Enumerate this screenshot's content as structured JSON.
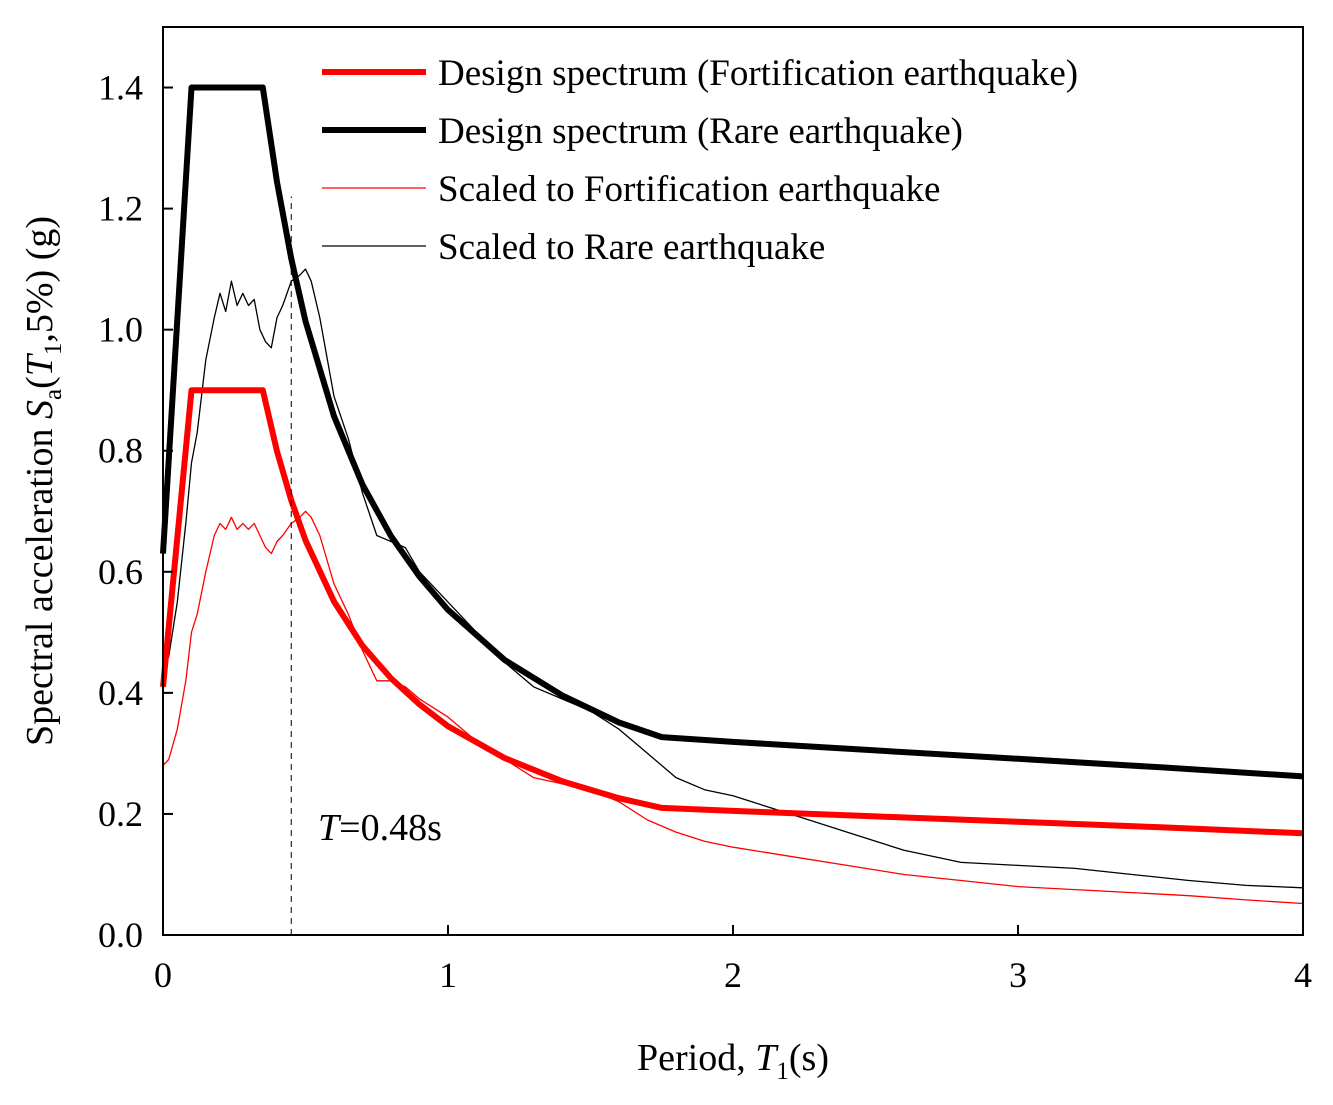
{
  "chart_data": {
    "type": "line",
    "title": "",
    "xlabel": {
      "prefix": "Period, ",
      "var": "T",
      "sub": "1",
      "suffix": "(s)"
    },
    "ylabel": {
      "prefix": "Spectral acceleration ",
      "var": "S",
      "sub": "a",
      "open": "(",
      "var2": "T",
      "sub2": "1",
      "suffix": ",5%) (g)"
    },
    "xlim": [
      0,
      4
    ],
    "ylim": [
      0,
      1.5
    ],
    "x_ticks": [
      0,
      1,
      2,
      3,
      4
    ],
    "x_tick_labels": [
      "0",
      "1",
      "2",
      "3",
      "4"
    ],
    "y_ticks": [
      0.0,
      0.2,
      0.4,
      0.6,
      0.8,
      1.0,
      1.2,
      1.4
    ],
    "y_tick_labels": [
      "0.0",
      "0.2",
      "0.4",
      "0.6",
      "0.8",
      "1.0",
      "1.2",
      "1.4"
    ],
    "legend_position": "top-right",
    "annotation": {
      "var": "T",
      "text": "=0.48s",
      "x": 0.45
    },
    "series": [
      {
        "name": "Design spectrum (Fortification earthquake)",
        "color": "#ff0000",
        "weight": "thick",
        "x": [
          0,
          0.1,
          0.35,
          0.4,
          0.45,
          0.5,
          0.6,
          0.7,
          0.8,
          0.9,
          1.0,
          1.2,
          1.4,
          1.6,
          1.75,
          2.0,
          2.5,
          3.0,
          3.5,
          4.0
        ],
        "y": [
          0.41,
          0.9,
          0.9,
          0.799,
          0.718,
          0.652,
          0.551,
          0.478,
          0.424,
          0.381,
          0.345,
          0.292,
          0.254,
          0.226,
          0.21,
          0.205,
          0.196,
          0.187,
          0.178,
          0.168
        ]
      },
      {
        "name": "Design spectrum (Rare earthquake)",
        "color": "#000000",
        "weight": "thick",
        "x": [
          0,
          0.1,
          0.35,
          0.4,
          0.45,
          0.5,
          0.6,
          0.7,
          0.8,
          0.9,
          1.0,
          1.2,
          1.4,
          1.6,
          1.75,
          2.0,
          2.5,
          3.0,
          3.5,
          4.0
        ],
        "y": [
          0.63,
          1.4,
          1.4,
          1.244,
          1.117,
          1.014,
          0.857,
          0.744,
          0.659,
          0.592,
          0.537,
          0.454,
          0.396,
          0.351,
          0.327,
          0.319,
          0.305,
          0.291,
          0.277,
          0.262
        ]
      },
      {
        "name": "Scaled to Fortification earthquake",
        "color": "#ff0000",
        "weight": "thin",
        "x": [
          0,
          0.02,
          0.05,
          0.08,
          0.1,
          0.12,
          0.15,
          0.18,
          0.2,
          0.22,
          0.24,
          0.26,
          0.28,
          0.3,
          0.32,
          0.34,
          0.36,
          0.38,
          0.4,
          0.42,
          0.45,
          0.48,
          0.5,
          0.52,
          0.55,
          0.6,
          0.65,
          0.7,
          0.75,
          0.8,
          0.85,
          0.9,
          1.0,
          1.1,
          1.2,
          1.3,
          1.4,
          1.5,
          1.6,
          1.7,
          1.8,
          1.9,
          2.0,
          2.2,
          2.4,
          2.6,
          2.8,
          3.0,
          3.2,
          3.4,
          3.6,
          3.8,
          4.0
        ],
        "y": [
          0.28,
          0.29,
          0.34,
          0.42,
          0.5,
          0.53,
          0.6,
          0.66,
          0.68,
          0.67,
          0.69,
          0.67,
          0.68,
          0.67,
          0.68,
          0.66,
          0.64,
          0.63,
          0.65,
          0.66,
          0.68,
          0.69,
          0.7,
          0.69,
          0.66,
          0.58,
          0.53,
          0.47,
          0.42,
          0.42,
          0.41,
          0.39,
          0.36,
          0.32,
          0.29,
          0.26,
          0.25,
          0.24,
          0.22,
          0.19,
          0.17,
          0.155,
          0.145,
          0.13,
          0.115,
          0.1,
          0.09,
          0.08,
          0.075,
          0.07,
          0.065,
          0.058,
          0.052
        ]
      },
      {
        "name": "Scaled to Rare earthquake",
        "color": "#000000",
        "weight": "thin",
        "x": [
          0,
          0.02,
          0.05,
          0.08,
          0.1,
          0.12,
          0.15,
          0.18,
          0.2,
          0.22,
          0.24,
          0.26,
          0.28,
          0.3,
          0.32,
          0.34,
          0.36,
          0.38,
          0.4,
          0.42,
          0.45,
          0.48,
          0.5,
          0.52,
          0.55,
          0.6,
          0.65,
          0.7,
          0.75,
          0.8,
          0.85,
          0.9,
          1.0,
          1.1,
          1.2,
          1.3,
          1.4,
          1.5,
          1.6,
          1.7,
          1.8,
          1.9,
          2.0,
          2.2,
          2.4,
          2.6,
          2.8,
          3.0,
          3.2,
          3.4,
          3.6,
          3.8,
          4.0
        ],
        "y": [
          0.44,
          0.46,
          0.55,
          0.68,
          0.78,
          0.83,
          0.95,
          1.02,
          1.06,
          1.03,
          1.08,
          1.04,
          1.06,
          1.04,
          1.05,
          1.0,
          0.98,
          0.97,
          1.02,
          1.04,
          1.08,
          1.09,
          1.1,
          1.08,
          1.02,
          0.89,
          0.82,
          0.73,
          0.66,
          0.65,
          0.64,
          0.6,
          0.55,
          0.5,
          0.45,
          0.41,
          0.39,
          0.37,
          0.34,
          0.3,
          0.26,
          0.24,
          0.23,
          0.2,
          0.17,
          0.14,
          0.12,
          0.115,
          0.11,
          0.1,
          0.09,
          0.082,
          0.078
        ]
      }
    ]
  }
}
